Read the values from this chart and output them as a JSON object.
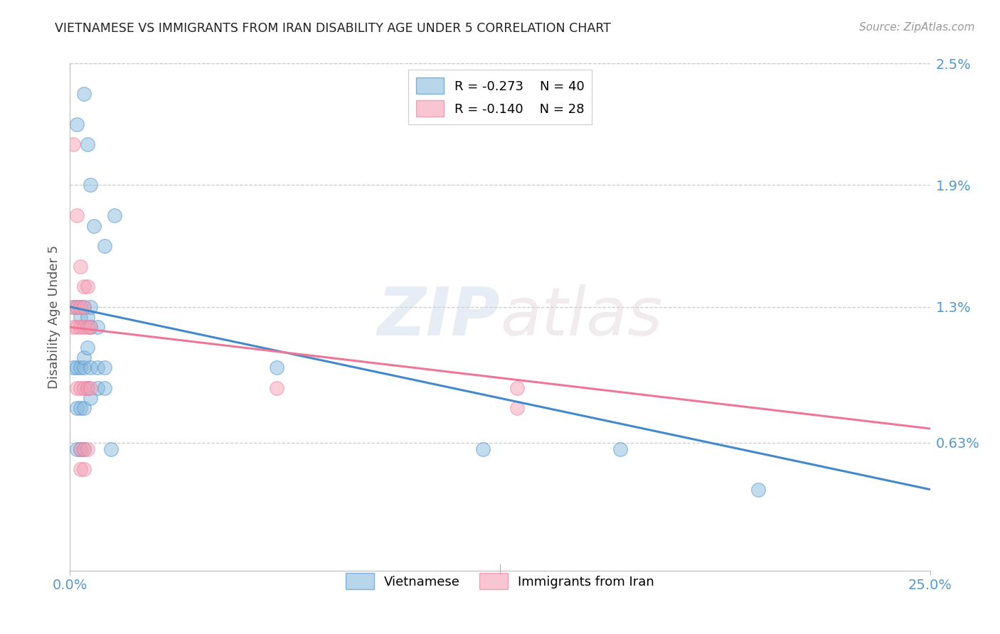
{
  "title": "VIETNAMESE VS IMMIGRANTS FROM IRAN DISABILITY AGE UNDER 5 CORRELATION CHART",
  "source": "Source: ZipAtlas.com",
  "ylabel": "Disability Age Under 5",
  "x_min": 0.0,
  "x_max": 0.25,
  "y_min": 0.0,
  "y_max": 0.025,
  "y_tick_labels_right": [
    "2.5%",
    "1.9%",
    "1.3%",
    "0.63%"
  ],
  "y_tick_vals_right": [
    0.025,
    0.019,
    0.013,
    0.0063
  ],
  "legend_r1": "R = -0.273",
  "legend_n1": "N = 40",
  "legend_r2": "R = -0.140",
  "legend_n2": "N = 28",
  "color_blue": "#88bbdd",
  "color_pink": "#f4a0b5",
  "color_line_blue": "#4488cc",
  "color_line_pink": "#ee7799",
  "color_axis_label": "#5599cc",
  "watermark_zip": "ZIP",
  "watermark_atlas": "atlas",
  "viet_x": [
    0.002,
    0.004,
    0.005,
    0.006,
    0.007,
    0.01,
    0.013,
    0.001,
    0.002,
    0.003,
    0.003,
    0.004,
    0.005,
    0.006,
    0.006,
    0.008,
    0.001,
    0.002,
    0.003,
    0.004,
    0.004,
    0.005,
    0.006,
    0.008,
    0.01,
    0.002,
    0.003,
    0.004,
    0.005,
    0.006,
    0.008,
    0.01,
    0.002,
    0.003,
    0.004,
    0.012,
    0.06,
    0.2,
    0.16,
    0.12
  ],
  "viet_y": [
    0.022,
    0.0235,
    0.021,
    0.019,
    0.017,
    0.016,
    0.0175,
    0.013,
    0.013,
    0.013,
    0.0125,
    0.013,
    0.0125,
    0.012,
    0.013,
    0.012,
    0.01,
    0.01,
    0.01,
    0.01,
    0.0105,
    0.011,
    0.01,
    0.01,
    0.01,
    0.008,
    0.008,
    0.008,
    0.009,
    0.0085,
    0.009,
    0.009,
    0.006,
    0.006,
    0.006,
    0.006,
    0.01,
    0.004,
    0.006,
    0.006
  ],
  "iran_x": [
    0.001,
    0.002,
    0.003,
    0.004,
    0.001,
    0.002,
    0.003,
    0.004,
    0.005,
    0.001,
    0.002,
    0.003,
    0.004,
    0.005,
    0.006,
    0.002,
    0.003,
    0.004,
    0.005,
    0.006,
    0.003,
    0.004,
    0.005,
    0.003,
    0.004,
    0.06,
    0.13,
    0.13
  ],
  "iran_y": [
    0.021,
    0.0175,
    0.015,
    0.014,
    0.013,
    0.013,
    0.013,
    0.013,
    0.014,
    0.012,
    0.012,
    0.012,
    0.012,
    0.012,
    0.012,
    0.009,
    0.009,
    0.009,
    0.009,
    0.009,
    0.006,
    0.006,
    0.006,
    0.005,
    0.005,
    0.009,
    0.009,
    0.008
  ],
  "blue_line_x": [
    0.0,
    0.25
  ],
  "blue_line_y": [
    0.013,
    0.004
  ],
  "pink_line_x": [
    0.0,
    0.25
  ],
  "pink_line_y": [
    0.012,
    0.007
  ]
}
